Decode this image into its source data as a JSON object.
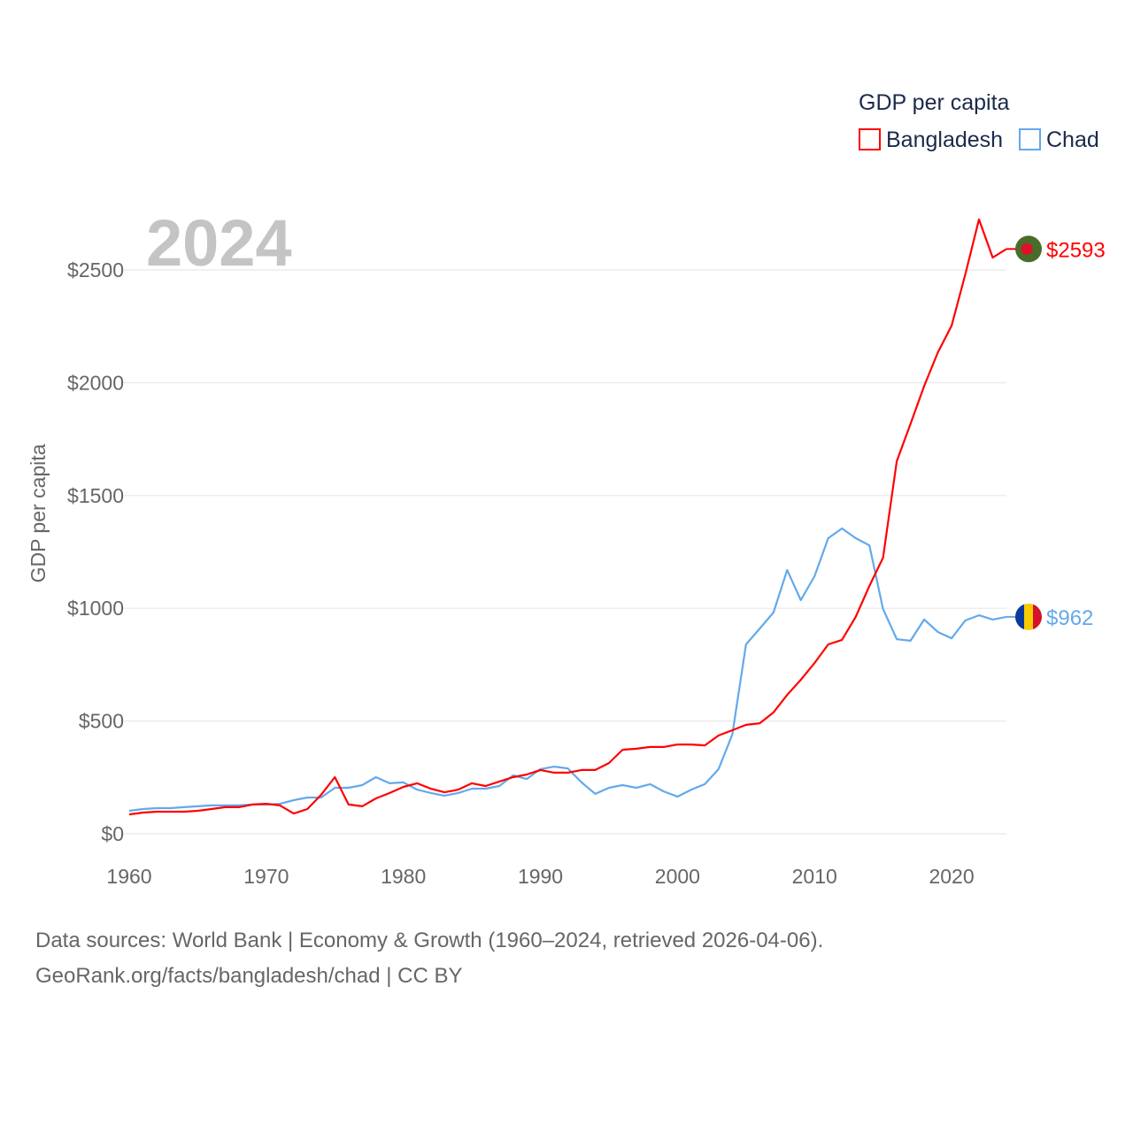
{
  "chart_data": {
    "type": "line",
    "title": "GDP per capita",
    "year_label": "2024",
    "xlabel": "",
    "ylabel": "GDP per capita",
    "xlim": [
      1960,
      2024
    ],
    "ylim": [
      0,
      2500
    ],
    "grid": true,
    "legend_placement": "top-right",
    "x_ticks": [
      1960,
      1970,
      1980,
      1990,
      2000,
      2010,
      2020
    ],
    "x_tick_labels": [
      "1960",
      "1970",
      "1980",
      "1990",
      "2000",
      "2010",
      "2020"
    ],
    "y_ticks": [
      0,
      500,
      1000,
      1500,
      2000,
      2500
    ],
    "y_tick_labels": [
      "$0",
      "$500",
      "$1000",
      "$1500",
      "$2000",
      "$2500"
    ],
    "x": [
      1960,
      1961,
      1962,
      1963,
      1964,
      1965,
      1966,
      1967,
      1968,
      1969,
      1970,
      1971,
      1972,
      1973,
      1974,
      1975,
      1976,
      1977,
      1978,
      1979,
      1980,
      1981,
      1982,
      1983,
      1984,
      1985,
      1986,
      1987,
      1988,
      1989,
      1990,
      1991,
      1992,
      1993,
      1994,
      1995,
      1996,
      1997,
      1998,
      1999,
      2000,
      2001,
      2002,
      2003,
      2004,
      2005,
      2006,
      2007,
      2008,
      2009,
      2010,
      2011,
      2012,
      2013,
      2014,
      2015,
      2016,
      2017,
      2018,
      2019,
      2020,
      2021,
      2022,
      2023,
      2024
    ],
    "series": [
      {
        "name": "Bangladesh",
        "color": "#ff0000",
        "end_label": "$2593",
        "flag": "bangladesh-flag",
        "values": [
          86,
          94,
          98,
          98,
          98,
          102,
          110,
          118,
          118,
          130,
          133,
          126,
          90,
          110,
          173,
          251,
          130,
          122,
          157,
          181,
          208,
          224,
          200,
          184,
          196,
          224,
          212,
          232,
          251,
          263,
          283,
          271,
          271,
          283,
          283,
          314,
          373,
          377,
          385,
          385,
          396,
          396,
          392,
          436,
          459,
          483,
          490,
          538,
          616,
          683,
          757,
          840,
          860,
          962,
          1099,
          1224,
          1652,
          1817,
          1986,
          2135,
          2253,
          2480,
          2724,
          2555,
          2593
        ]
      },
      {
        "name": "Chad",
        "color": "#63a9ec",
        "end_label": "$962",
        "flag": "chad-flag",
        "values": [
          102,
          110,
          114,
          114,
          118,
          122,
          126,
          126,
          126,
          130,
          130,
          133,
          149,
          161,
          161,
          204,
          204,
          216,
          251,
          224,
          228,
          196,
          181,
          169,
          181,
          200,
          200,
          212,
          259,
          243,
          287,
          298,
          290,
          228,
          177,
          204,
          216,
          204,
          220,
          188,
          165,
          196,
          220,
          287,
          440,
          840,
          910,
          981,
          1170,
          1036,
          1142,
          1311,
          1354,
          1311,
          1279,
          997,
          863,
          856,
          950,
          895,
          867,
          946,
          969,
          950,
          962
        ]
      }
    ]
  },
  "footer": {
    "line1": "Data sources: World Bank | Economy & Growth (1960–2024, retrieved 2026-04-06).",
    "line2": "GeoRank.org/facts/bangladesh/chad | CC BY"
  }
}
